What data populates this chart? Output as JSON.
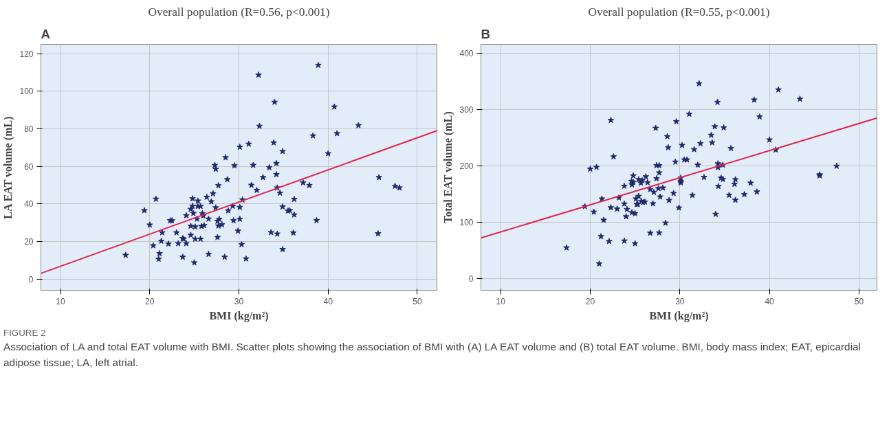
{
  "chart_data": [
    {
      "type": "scatter",
      "title": "Overall population (R=0.56, p<0.001)",
      "xlabel": "BMI (kg/m²)",
      "ylabel": "LA EAT volume (mL)",
      "xlim": [
        7.8,
        52.2
      ],
      "ylim": [
        -6,
        125
      ],
      "xticks": [
        10,
        20,
        30,
        40,
        50
      ],
      "yticks": [
        0,
        20,
        40,
        60,
        80,
        100,
        120
      ],
      "grid": true,
      "annotations": [
        "A",
        "FIGURE 2",
        "Association of LA and total EAT volume with BMI. Scatter plots showing the association of BMI with (A) LA EAT volume and (B) total EAT volume. BMI, body mass index; EAT, epicardial adipose tissue; LA, left atrial."
      ],
      "series": [
        {
          "marker": "star",
          "color": "#1f2a6b",
          "x": [
            17.3,
            19.4,
            20.0,
            20.7,
            20.4,
            21.3,
            21.1,
            21.0,
            21.4,
            22.1,
            22.3,
            22.5,
            23.0,
            23.2,
            23.7,
            23.7,
            23.8,
            24.1,
            24.1,
            24.6,
            24.6,
            24.6,
            24.8,
            24.8,
            24.9,
            25.0,
            25.1,
            25.1,
            25.3,
            25.4,
            25.4,
            25.7,
            25.7,
            25.8,
            25.9,
            26.1,
            26.0,
            26.4,
            26.6,
            26.6,
            26.9,
            27.1,
            27.3,
            27.4,
            27.4,
            27.7,
            27.6,
            27.6,
            27.8,
            27.7,
            28.1,
            28.5,
            28.4,
            28.7,
            28.8,
            29.3,
            29.5,
            29.4,
            30.1,
            32.2,
            38.9,
            34.0,
            40.7,
            32.3,
            43.4,
            38.3,
            41.0,
            31.1,
            33.9,
            34.9,
            40.0,
            31.6,
            33.4,
            34.2,
            32.7,
            34.2,
            45.7,
            31.4,
            32.0,
            37.2,
            37.9,
            47.5,
            48.0,
            34.3,
            34.6,
            36.2,
            30.4,
            30.1,
            34.9,
            35.5,
            35.7,
            36.2,
            30.1,
            38.7,
            29.9,
            33.6,
            34.3,
            36.1,
            45.6,
            30.3,
            34.9,
            30.8
          ],
          "values": [
            12.7,
            36.5,
            28.8,
            42.6,
            17.8,
            20.2,
            13.6,
            10.6,
            24.7,
            18.7,
            31.1,
            31.1,
            24.7,
            18.9,
            11.7,
            21.6,
            21.3,
            18.9,
            33.8,
            23.4,
            28.2,
            37.2,
            38.9,
            42.8,
            35.0,
            8.7,
            27.8,
            21.3,
            32.0,
            41.6,
            38.7,
            38.7,
            21.3,
            28.1,
            34.9,
            28.5,
            33.7,
            43.6,
            13.2,
            32.0,
            41.2,
            45.5,
            60.6,
            58.5,
            38.0,
            49.8,
            22.2,
            30.8,
            31.9,
            28.3,
            29.0,
            64.7,
            11.7,
            53.0,
            36.4,
            38.8,
            60.4,
            31.1,
            70.3,
            108.7,
            113.9,
            94.2,
            91.7,
            81.4,
            81.8,
            76.3,
            77.5,
            71.9,
            72.6,
            68.0,
            66.8,
            60.6,
            59.4,
            61.6,
            54.1,
            55.7,
            54.1,
            50.0,
            47.3,
            51.3,
            49.9,
            49.5,
            48.6,
            48.6,
            45.8,
            42.5,
            42.2,
            38.2,
            38.5,
            36.3,
            36.5,
            34.2,
            31.9,
            31.2,
            25.6,
            24.8,
            24.0,
            24.6,
            24.2,
            18.4,
            15.8,
            10.8
          ]
        },
        {
          "type": "line",
          "color": "#e0254e",
          "x": [
            7.8,
            52.2
          ],
          "values": [
            3,
            79
          ]
        }
      ]
    },
    {
      "type": "scatter",
      "title": "Overall population (R=0.55, p<0.001)",
      "xlabel": "BMI (kg/m²)",
      "ylabel": "Total EAT volume (mL)",
      "xlim": [
        7.8,
        52.0
      ],
      "ylim": [
        -21,
        416
      ],
      "xticks": [
        10,
        20,
        30,
        40,
        50
      ],
      "yticks": [
        0,
        100,
        200,
        300,
        400
      ],
      "grid": true,
      "annotations": [
        "B"
      ],
      "series": [
        {
          "marker": "star",
          "color": "#1f2a6b",
          "x": [
            17.35,
            19.4,
            20.0,
            20.7,
            20.4,
            21.0,
            21.2,
            21.3,
            21.5,
            22.1,
            22.3,
            22.3,
            22.6,
            23.0,
            23.2,
            23.8,
            23.8,
            23.8,
            24.1,
            24.0,
            24.6,
            24.65,
            24.8,
            24.8,
            24.65,
            25.0,
            25.0,
            25.1,
            25.2,
            25.3,
            25.4,
            25.4,
            25.65,
            25.8,
            25.7,
            25.9,
            26.1,
            26.2,
            26.4,
            26.7,
            26.7,
            27.0,
            27.1,
            27.3,
            27.4,
            27.4,
            27.7,
            27.7,
            27.6,
            27.7,
            27.8,
            28.1,
            28.4,
            28.6,
            28.7,
            28.8,
            29.3,
            29.5,
            29.6,
            32.15,
            41.0,
            43.4,
            38.3,
            34.2,
            31.05,
            38.9,
            33.9,
            34.9,
            33.5,
            33.6,
            32.3,
            30.25,
            31.6,
            40.0,
            35.7,
            40.7,
            30.5,
            30.8,
            32.0,
            34.25,
            34.25,
            34.8,
            47.5,
            45.6,
            45.6,
            30.1,
            30.1,
            30.1,
            32.7,
            34.6,
            34.8,
            36.2,
            36.1,
            37.9,
            34.3,
            31.4,
            35.5,
            37.2,
            38.6,
            36.2,
            29.9,
            34.0
          ],
          "values": [
            54.6,
            127.9,
            194.5,
            197.7,
            118.1,
            26.1,
            74.5,
            141.5,
            103.7,
            65.9,
            281.1,
            125.9,
            216.4,
            123.6,
            143.5,
            164.1,
            132.6,
            66.7,
            122.8,
            109.9,
            172.7,
            166.5,
            182.5,
            170.8,
            117.0,
            115.4,
            62.0,
            141.5,
            131.8,
            131.8,
            146.2,
            175.8,
            169.6,
            173.9,
            137.2,
            135.3,
            136.1,
            180.9,
            170.4,
            158.3,
            80.7,
            132.9,
            153.2,
            267.1,
            177.4,
            200.8,
            200.8,
            187.9,
            159.8,
            81.1,
            145.0,
            161.0,
            98.6,
            252.2,
            232.7,
            138.8,
            151.3,
            207.0,
            278.8,
            346.2,
            335.3,
            318.9,
            317.3,
            313.1,
            292.0,
            287.3,
            269.8,
            267.8,
            254.6,
            241.3,
            239.8,
            236.6,
            229.2,
            246.4,
            231.2,
            228.5,
            210.9,
            210.9,
            201.6,
            203.9,
            197.3,
            201.6,
            199.6,
            184.4,
            182.5,
            178.6,
            172.7,
            170.0,
            179.7,
            178.6,
            176.2,
            175.8,
            167.6,
            169.6,
            163.7,
            147.8,
            148.1,
            149.3,
            154.0,
            139.2,
            125.5,
            114.2
          ]
        },
        {
          "type": "line",
          "color": "#e0254e",
          "x": [
            7.8,
            52.0
          ],
          "values": [
            72,
            285
          ]
        }
      ]
    }
  ]
}
